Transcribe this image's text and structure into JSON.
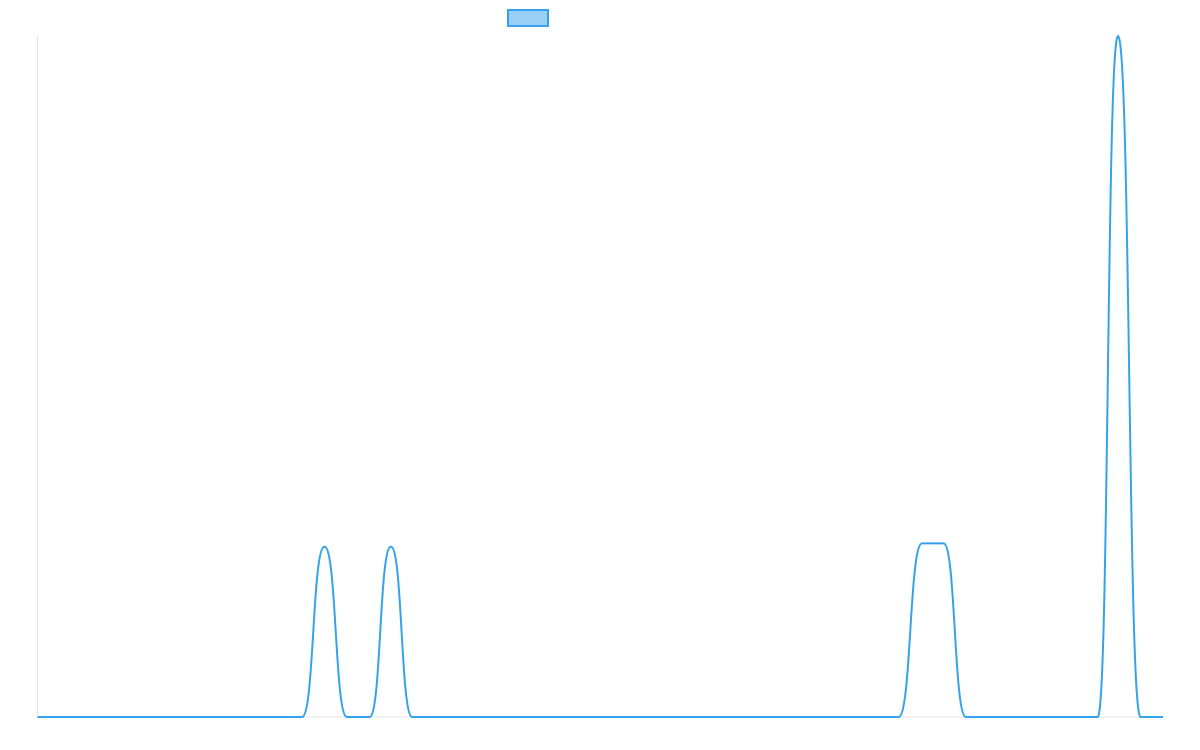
{
  "chart_data": {
    "type": "line",
    "title": "",
    "xlabel": "",
    "ylabel": "",
    "legend": {
      "placement": "top-center",
      "entries": [
        {
          "label": ""
        }
      ]
    },
    "grid": false,
    "xlim": [
      0,
      100
    ],
    "ylim": [
      0,
      100
    ],
    "series": [
      {
        "color": "#36a2eb",
        "fill": "#9ad0f5",
        "points": [
          [
            0,
            0
          ],
          [
            23.5,
            0
          ],
          [
            25.5,
            25
          ],
          [
            27.5,
            0
          ],
          [
            29.5,
            0
          ],
          [
            31.4,
            25
          ],
          [
            33.3,
            0
          ],
          [
            76.5,
            0
          ],
          [
            78.6,
            25.5
          ],
          [
            80.5,
            25.5
          ],
          [
            82.5,
            0
          ],
          [
            94.2,
            0
          ],
          [
            96.0,
            100
          ],
          [
            98.0,
            0
          ],
          [
            100,
            0
          ]
        ]
      }
    ]
  }
}
